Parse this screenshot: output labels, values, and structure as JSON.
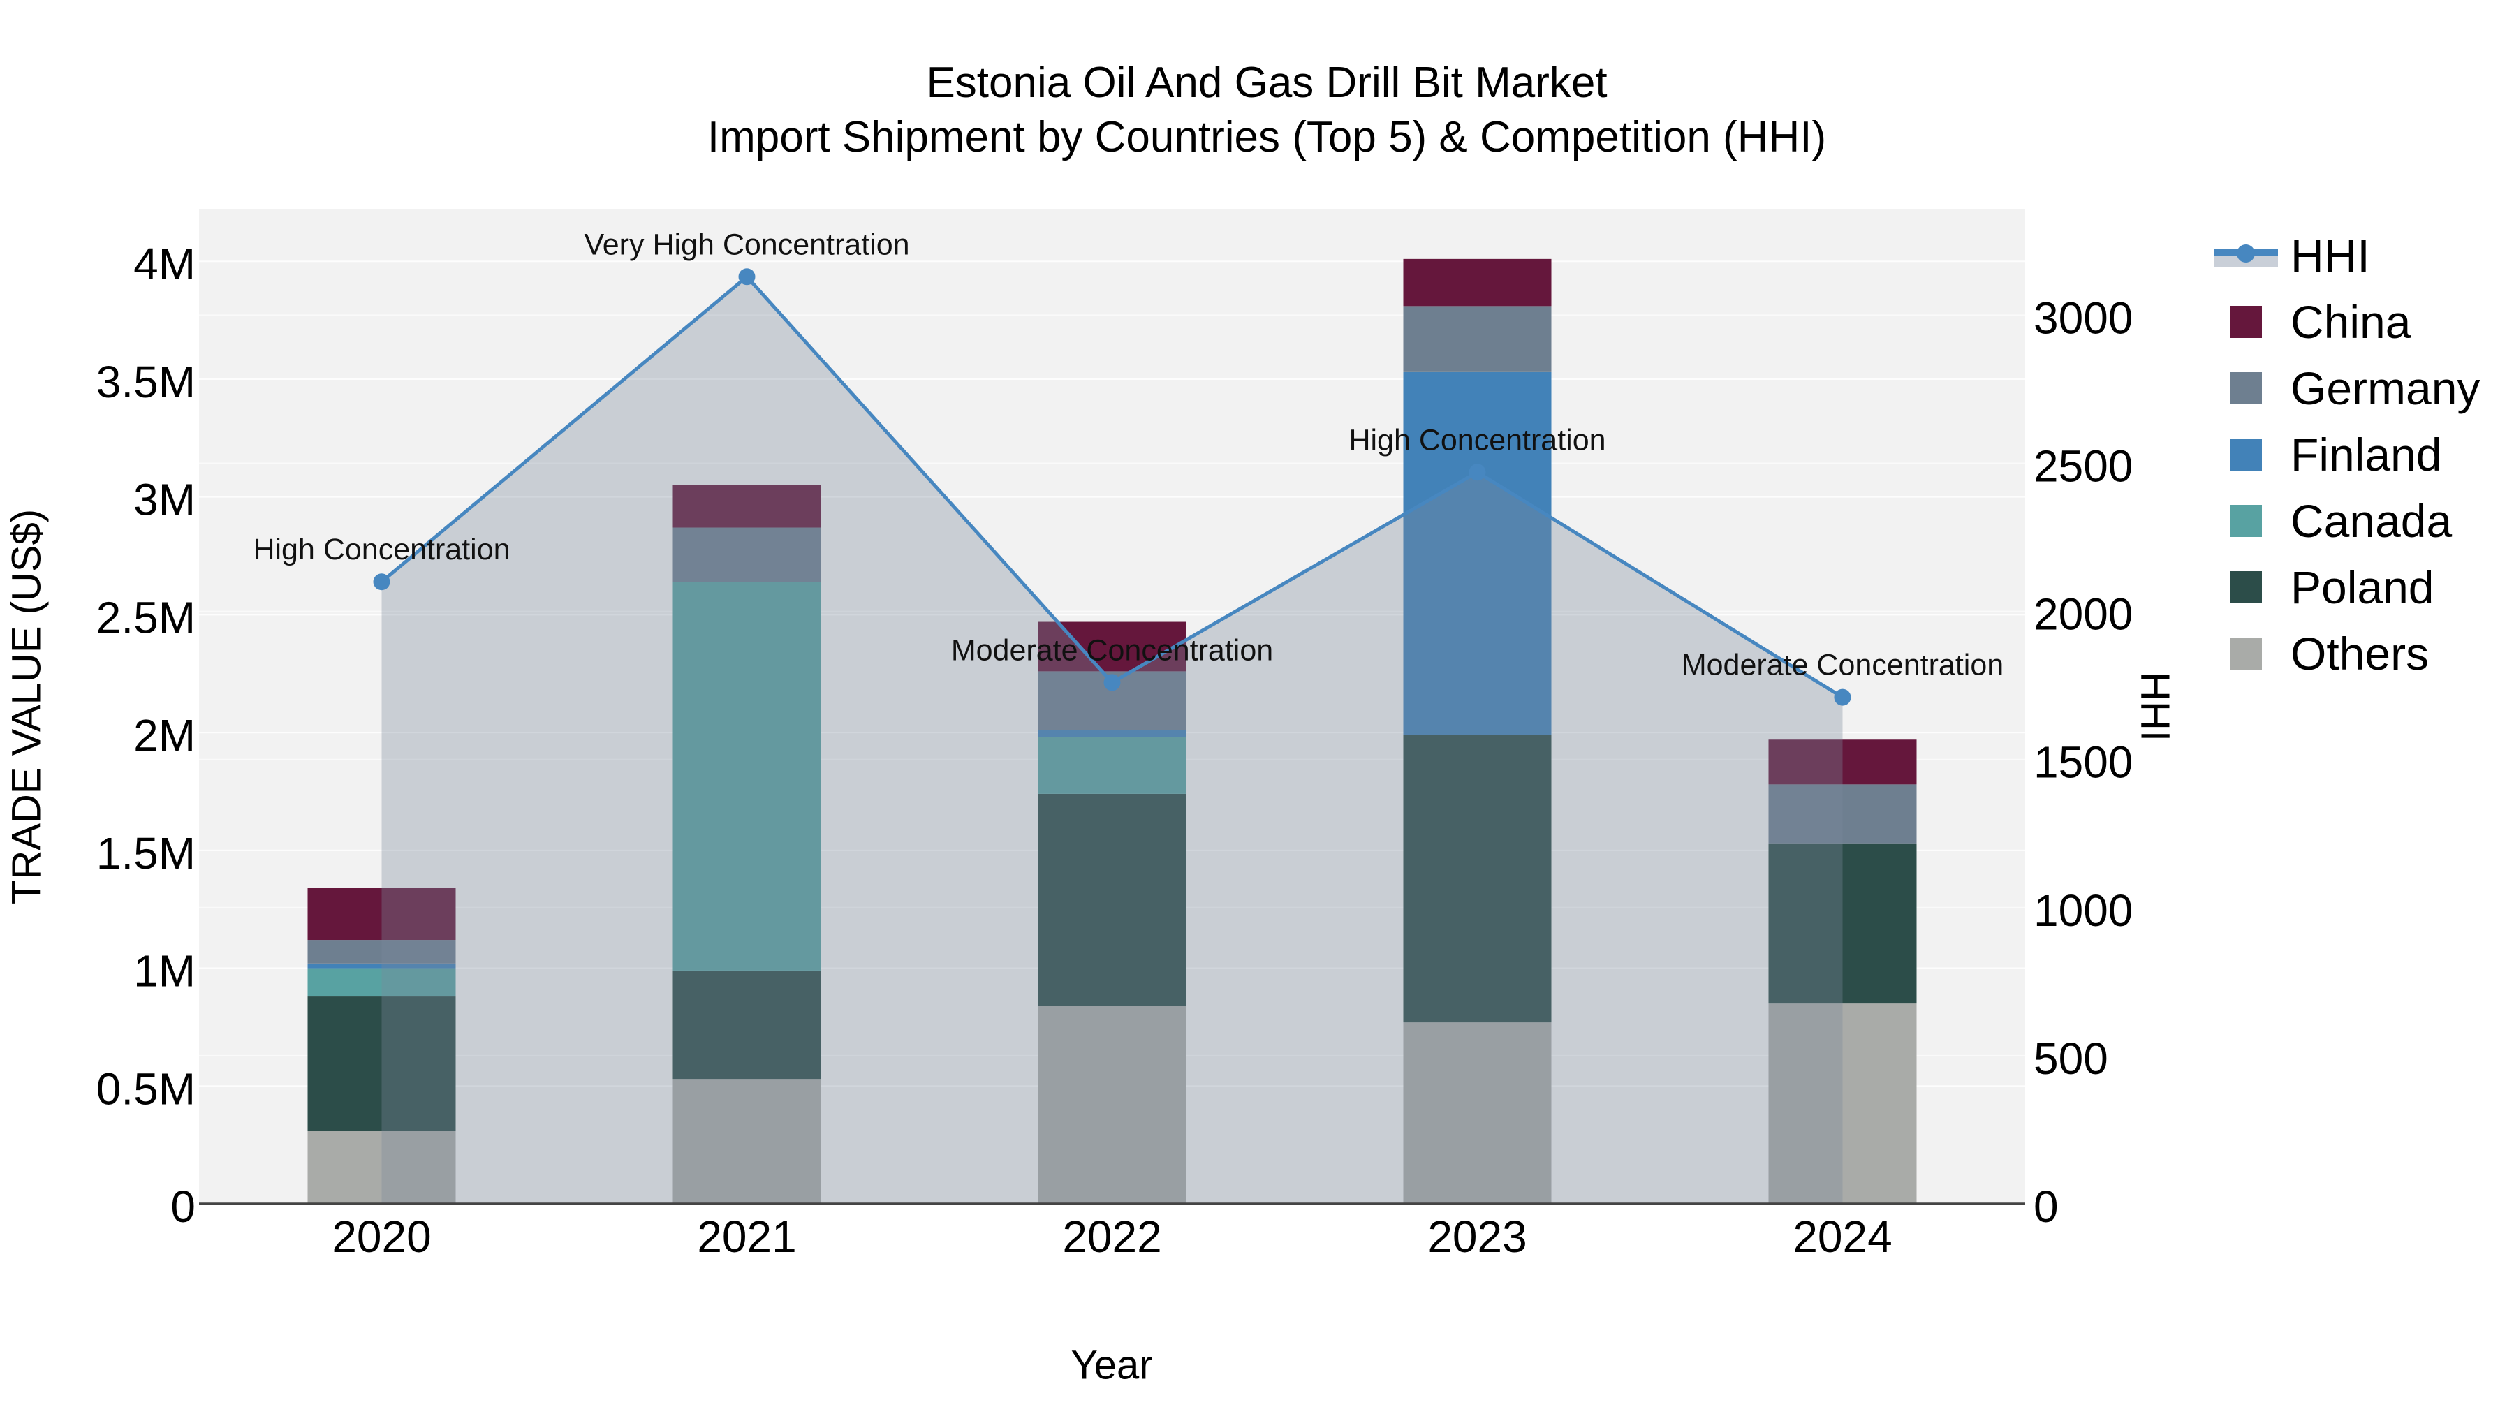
{
  "title": {
    "line1": "Estonia Oil And Gas Drill Bit Market",
    "line2": "Import Shipment by Countries (Top 5) & Competition (HHI)"
  },
  "axes": {
    "x_label": "Year",
    "y_left_label": "TRADE VALUE (US$)",
    "y_right_label": "HHI",
    "x_ticks": [
      "2020",
      "2021",
      "2022",
      "2023",
      "2024"
    ],
    "y_left_ticks": [
      {
        "value": 0,
        "label": "0"
      },
      {
        "value": 0.5,
        "label": "0.5M"
      },
      {
        "value": 1,
        "label": "1M"
      },
      {
        "value": 1.5,
        "label": "1.5M"
      },
      {
        "value": 2,
        "label": "2M"
      },
      {
        "value": 2.5,
        "label": "2.5M"
      },
      {
        "value": 3,
        "label": "3M"
      },
      {
        "value": 3.5,
        "label": "3.5M"
      },
      {
        "value": 4,
        "label": "4M"
      }
    ],
    "y_right_ticks": [
      {
        "value": 0,
        "label": "0"
      },
      {
        "value": 500,
        "label": "500"
      },
      {
        "value": 1000,
        "label": "1000"
      },
      {
        "value": 1500,
        "label": "1500"
      },
      {
        "value": 2000,
        "label": "2000"
      },
      {
        "value": 2500,
        "label": "2500"
      },
      {
        "value": 3000,
        "label": "3000"
      }
    ]
  },
  "legend": {
    "items": [
      {
        "label": "HHI",
        "type": "line",
        "color": "#4787C0"
      },
      {
        "label": "China",
        "type": "swatch",
        "color": "#65173C"
      },
      {
        "label": "Germany",
        "type": "swatch",
        "color": "#6E7F90"
      },
      {
        "label": "Finland",
        "type": "swatch",
        "color": "#4282B8"
      },
      {
        "label": "Canada",
        "type": "swatch",
        "color": "#58A2A2"
      },
      {
        "label": "Poland",
        "type": "swatch",
        "color": "#2C4D49"
      },
      {
        "label": "Others",
        "type": "swatch",
        "color": "#A9ABA8"
      }
    ]
  },
  "colors": {
    "plot_background": "#F2F2F2",
    "gridline": "#FFFFFF",
    "axis_line": "#444444",
    "hhi_line": "#4787C0",
    "hhi_area_fill": "rgba(122,138,155,0.34)"
  },
  "chart_data": {
    "type": "bar",
    "subtype": "stacked-bar-with-line-overlay",
    "title": "Estonia Oil And Gas Drill Bit Market — Import Shipment by Countries (Top 5) & Competition (HHI)",
    "categories": [
      "2020",
      "2021",
      "2022",
      "2023",
      "2024"
    ],
    "unit_left": "Trade value, millions US$",
    "unit_right": "HHI index",
    "series": [
      {
        "name": "Others",
        "color": "#A9ABA8",
        "values": [
          0.31,
          0.53,
          0.84,
          0.77,
          0.85
        ]
      },
      {
        "name": "Poland",
        "color": "#2C4D49",
        "values": [
          0.57,
          0.46,
          0.9,
          1.22,
          0.68
        ]
      },
      {
        "name": "Canada",
        "color": "#58A2A2",
        "values": [
          0.12,
          1.65,
          0.24,
          0,
          0
        ]
      },
      {
        "name": "Finland",
        "color": "#4282B8",
        "values": [
          0.02,
          0,
          0.03,
          1.54,
          0
        ]
      },
      {
        "name": "Germany",
        "color": "#6E7F90",
        "values": [
          0.1,
          0.23,
          0.25,
          0.28,
          0.25
        ]
      },
      {
        "name": "China",
        "color": "#65173C",
        "values": [
          0.22,
          0.18,
          0.21,
          0.2,
          0.19
        ]
      }
    ],
    "stack_totals": [
      1.34,
      3.05,
      2.47,
      4.01,
      1.97
    ],
    "line_series": {
      "name": "HHI",
      "axis": "right",
      "color": "#4787C0",
      "values": [
        2100,
        3130,
        1760,
        2470,
        1710
      ]
    },
    "annotations": [
      {
        "category": "2020",
        "text": "High Concentration"
      },
      {
        "category": "2021",
        "text": "Very High Concentration"
      },
      {
        "category": "2022",
        "text": "Moderate Concentration"
      },
      {
        "category": "2023",
        "text": "High Concentration"
      },
      {
        "category": "2024",
        "text": "Moderate Concentration"
      }
    ],
    "xlabel": "Year",
    "ylabel": "TRADE VALUE (US$)",
    "ylabel_right": "HHI",
    "ylim_left": [
      0,
      4.22
    ],
    "ylim_right": [
      0,
      3357
    ],
    "grid": true,
    "legend_position": "right-outside"
  }
}
